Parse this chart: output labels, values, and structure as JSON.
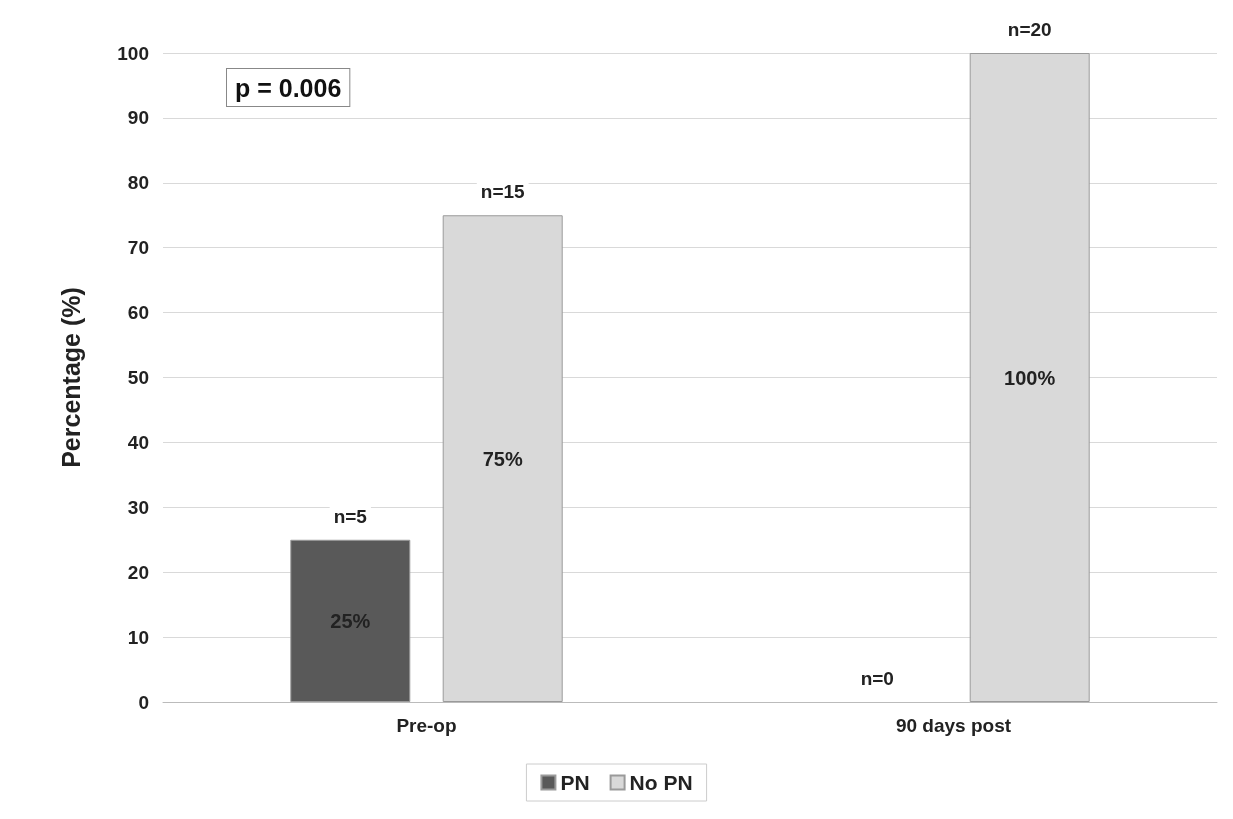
{
  "chart_data": {
    "type": "bar",
    "ylabel": "Percentage (%)",
    "categories": [
      "Pre-op",
      "90 days post"
    ],
    "series": [
      {
        "name": "PN",
        "color": "#595959",
        "values": [
          25,
          0
        ],
        "value_labels": [
          "25%",
          null
        ]
      },
      {
        "name": "No PN",
        "color": "#d9d9d9",
        "values": [
          75,
          100
        ],
        "value_labels": [
          "75%",
          "100%"
        ]
      }
    ],
    "ylim": [
      0,
      100
    ],
    "yticks": [
      0,
      10,
      20,
      30,
      40,
      50,
      60,
      70,
      80,
      90,
      100
    ],
    "grid": "y",
    "legend": "bottom",
    "annotations": [
      "p = 0.006",
      "n=5",
      "n=15",
      "n=0",
      "n=20"
    ]
  }
}
